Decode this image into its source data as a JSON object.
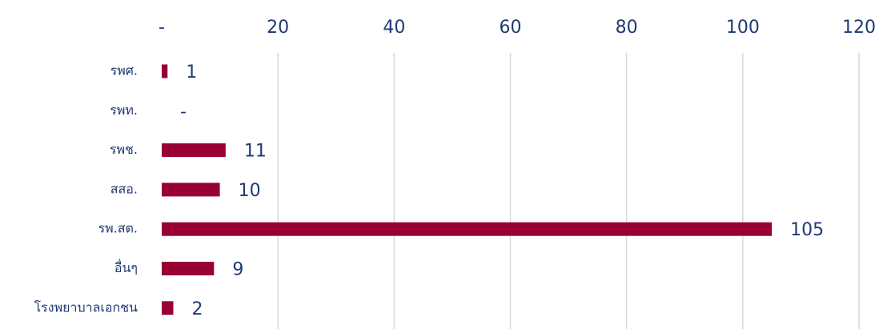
{
  "chart_data": {
    "type": "bar",
    "orientation": "horizontal",
    "categories": [
      "รพศ.",
      "รพท.",
      "รพช.",
      "สสอ.",
      "รพ.สต.",
      "อื่นๆ",
      "โรงพยาบาลเอกชน"
    ],
    "values": [
      1,
      0,
      11,
      10,
      105,
      9,
      2
    ],
    "data_labels": [
      "1",
      "-",
      "11",
      "10",
      "105",
      "9",
      "2"
    ],
    "x_ticks": [
      0,
      20,
      40,
      60,
      80,
      100,
      120
    ],
    "x_tick_labels": [
      "-",
      "20",
      "40",
      "60",
      "80",
      "100",
      "120"
    ],
    "xlim": [
      0,
      120
    ],
    "x_axis_position": "top",
    "grid": true,
    "bar_color": "#990033",
    "text_color": "#1f3a73",
    "title": "",
    "xlabel": "",
    "ylabel": ""
  }
}
